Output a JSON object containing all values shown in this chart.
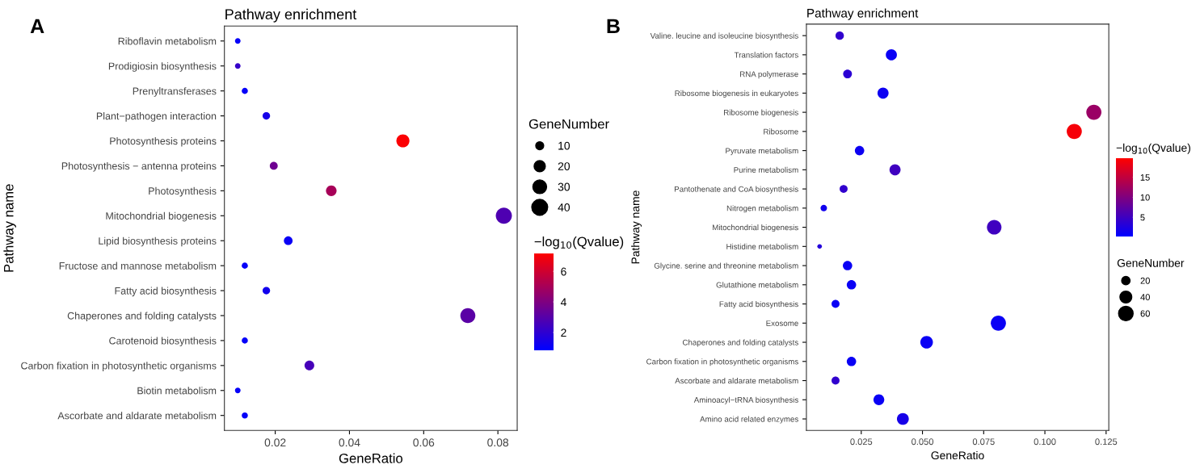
{
  "chart_data": [
    {
      "type": "bubble",
      "orientation": "horizontal",
      "title": "Pathway enrichment",
      "xlabel": "GeneRatio",
      "ylabel": "Pathway name",
      "legend_title": "GeneNumber",
      "clabel": "−log$_{10}$(Qvalue)",
      "annotations": [
        "A"
      ],
      "categories": [
        "Riboflavin metabolism",
        "Prodigiosin biosynthesis",
        "Prenyltransferases",
        "Plant−pathogen interaction",
        "Photosynthesis proteins",
        "Photosynthesis − antenna proteins",
        "Photosynthesis",
        "Mitochondrial biogenesis",
        "Lipid biosynthesis proteins",
        "Fructose and mannose metabolism",
        "Fatty acid biosynthesis",
        "Chaperones and folding catalysts",
        "Carotenoid biosynthesis",
        "Carbon fixation in photosynthetic organisms",
        "Biotin metabolism",
        "Ascorbate and aldarate metabolism"
      ],
      "values": [
        0.0099,
        0.0099,
        0.0118,
        0.0176,
        0.0544,
        0.0196,
        0.0351,
        0.0816,
        0.0235,
        0.0118,
        0.0176,
        0.0719,
        0.0118,
        0.0292,
        0.0099,
        0.0118
      ],
      "sizes": [
        5,
        5,
        6,
        9,
        27,
        10,
        18,
        41,
        12,
        6,
        9,
        36,
        6,
        15,
        5,
        6
      ],
      "cvalues": [
        1.0,
        2.2,
        1.0,
        1.4,
        7.1,
        3.6,
        5.0,
        2.8,
        1.1,
        1.0,
        1.3,
        3.1,
        1.0,
        2.6,
        1.0,
        1.0
      ],
      "size_legend": [
        10,
        20,
        30,
        40
      ],
      "clim": [
        0.85,
        7.2
      ],
      "cticks": [
        2,
        4,
        6
      ],
      "xlim": [
        0.0063,
        0.0852
      ],
      "xticks": [
        0.02,
        0.04,
        0.06,
        0.08
      ],
      "marker": "circle"
    },
    {
      "type": "bubble",
      "orientation": "horizontal",
      "title": "Pathway enrichment",
      "xlabel": "GeneRatio",
      "ylabel": "Pathway name",
      "legend_title": "GeneNumber",
      "clabel": "−log$_{10}$(Qvalue)",
      "annotations": [
        "B"
      ],
      "categories": [
        "Valine. leucine and isoleucine biosynthesis",
        "Translation factors",
        "RNA polymerase",
        "Ribosome biogenesis in eukaryotes",
        "Ribosome biogenesis",
        "Ribosome",
        "Pyruvate metabolism",
        "Purine metabolism",
        "Pantothenate and CoA biosynthesis",
        "Nitrogen metabolism",
        "Mitochondrial biogenesis",
        "Histidine metabolism",
        "Glycine. serine and threonine metabolism",
        "Glutathione metabolism",
        "Fatty acid biosynthesis",
        "Exosome",
        "Chaperones and folding catalysts",
        "Carbon fixation in photosynthetic organisms",
        "Ascorbate and aldarate metabolism",
        "Aminoacyl−tRNA biosynthesis",
        "Amino acid related enzymes"
      ],
      "values": [
        0.0162,
        0.0373,
        0.0194,
        0.0339,
        0.12,
        0.112,
        0.0243,
        0.0388,
        0.0178,
        0.0097,
        0.0793,
        0.008,
        0.0194,
        0.021,
        0.0145,
        0.081,
        0.0517,
        0.021,
        0.0145,
        0.0322,
        0.042
      ],
      "sizes": [
        20,
        35,
        22,
        35,
        65,
        65,
        25,
        35,
        18,
        12,
        60,
        6,
        25,
        25,
        18,
        65,
        45,
        25,
        18,
        33,
        40
      ],
      "cvalues": [
        4.0,
        1.0,
        3.5,
        1.2,
        12.0,
        19.0,
        1.2,
        5.0,
        4.0,
        1.5,
        5.0,
        3.0,
        1.0,
        1.0,
        1.0,
        1.0,
        1.0,
        1.0,
        4.0,
        1.0,
        2.0
      ],
      "size_legend": [
        20,
        40,
        60
      ],
      "clim": [
        0.2,
        19.7
      ],
      "cticks": [
        5,
        10,
        15
      ],
      "xlim": [
        0.0026,
        0.1261
      ],
      "xticks": [
        {
          "value": 0.025,
          "label": "0.025"
        },
        {
          "value": 0.05,
          "label": "0.050"
        },
        {
          "value": 0.075,
          "label": "0.075"
        },
        {
          "value": 0.1,
          "label": "0.100"
        },
        {
          "value": 0.125,
          "label": "0.125"
        }
      ],
      "marker": "circle"
    }
  ]
}
